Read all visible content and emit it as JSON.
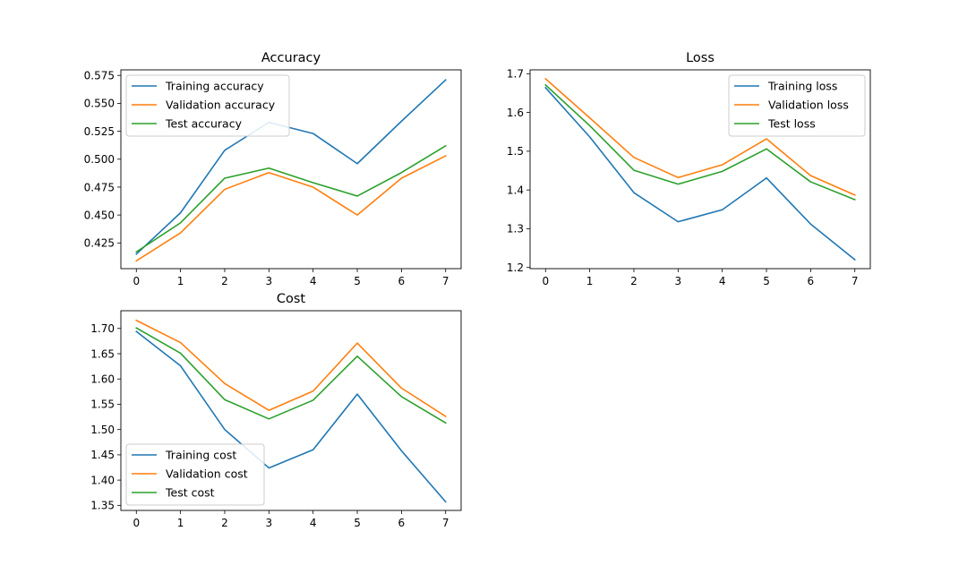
{
  "colors": {
    "training": "#1f77b4",
    "validation": "#ff7f0e",
    "test": "#2ca02c"
  },
  "chart_data": [
    {
      "type": "line",
      "title": "Accuracy",
      "xlabel": "",
      "ylabel": "",
      "x": [
        0,
        1,
        2,
        3,
        4,
        5,
        6,
        7
      ],
      "xticks": [
        0,
        1,
        2,
        3,
        4,
        5,
        6,
        7
      ],
      "xlim": [
        -0.35,
        7.35
      ],
      "ylim": [
        0.402,
        0.58
      ],
      "yticks": [
        "0.425",
        "0.450",
        "0.475",
        "0.500",
        "0.525",
        "0.550",
        "0.575"
      ],
      "grid": false,
      "legend": "upper-left",
      "series": [
        {
          "name": "Training accuracy",
          "color": "#1f77b4",
          "values": [
            0.415,
            0.452,
            0.508,
            0.533,
            0.523,
            0.496,
            0.534,
            0.571
          ]
        },
        {
          "name": "Validation accuracy",
          "color": "#ff7f0e",
          "values": [
            0.409,
            0.434,
            0.473,
            0.488,
            0.475,
            0.45,
            0.483,
            0.503
          ]
        },
        {
          "name": "Test accuracy",
          "color": "#2ca02c",
          "values": [
            0.417,
            0.443,
            0.483,
            0.492,
            0.479,
            0.467,
            0.488,
            0.512
          ]
        }
      ]
    },
    {
      "type": "line",
      "title": "Loss",
      "xlabel": "",
      "ylabel": "",
      "x": [
        0,
        1,
        2,
        3,
        4,
        5,
        6,
        7
      ],
      "xticks": [
        0,
        1,
        2,
        3,
        4,
        5,
        6,
        7
      ],
      "xlim": [
        -0.35,
        7.35
      ],
      "ylim": [
        1.197,
        1.71
      ],
      "yticks": [
        "1.2",
        "1.3",
        "1.4",
        "1.5",
        "1.6",
        "1.7"
      ],
      "grid": false,
      "legend": "upper-right",
      "series": [
        {
          "name": "Training loss",
          "color": "#1f77b4",
          "values": [
            1.664,
            1.537,
            1.393,
            1.318,
            1.349,
            1.431,
            1.312,
            1.22
          ]
        },
        {
          "name": "Validation loss",
          "color": "#ff7f0e",
          "values": [
            1.687,
            1.586,
            1.484,
            1.432,
            1.465,
            1.532,
            1.437,
            1.387
          ]
        },
        {
          "name": "Test loss",
          "color": "#2ca02c",
          "values": [
            1.671,
            1.566,
            1.451,
            1.415,
            1.448,
            1.506,
            1.421,
            1.375
          ]
        }
      ]
    },
    {
      "type": "line",
      "title": "Cost",
      "xlabel": "",
      "ylabel": "",
      "x": [
        0,
        1,
        2,
        3,
        4,
        5,
        6,
        7
      ],
      "xticks": [
        0,
        1,
        2,
        3,
        4,
        5,
        6,
        7
      ],
      "xlim": [
        -0.35,
        7.35
      ],
      "ylim": [
        1.34,
        1.735
      ],
      "yticks": [
        "1.35",
        "1.40",
        "1.45",
        "1.50",
        "1.55",
        "1.60",
        "1.65",
        "1.70"
      ],
      "grid": false,
      "legend": "lower-left",
      "series": [
        {
          "name": "Training cost",
          "color": "#1f77b4",
          "values": [
            1.694,
            1.626,
            1.5,
            1.424,
            1.46,
            1.57,
            1.458,
            1.357
          ]
        },
        {
          "name": "Validation cost",
          "color": "#ff7f0e",
          "values": [
            1.716,
            1.672,
            1.591,
            1.538,
            1.576,
            1.671,
            1.582,
            1.526
          ]
        },
        {
          "name": "Test cost",
          "color": "#2ca02c",
          "values": [
            1.701,
            1.651,
            1.559,
            1.521,
            1.558,
            1.645,
            1.565,
            1.513
          ]
        }
      ]
    }
  ]
}
